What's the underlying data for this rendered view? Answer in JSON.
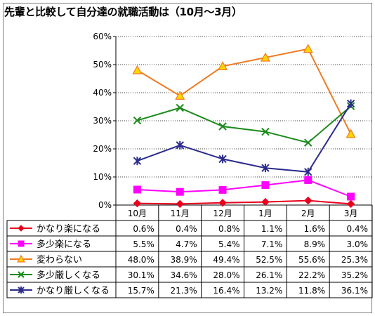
{
  "chart_data": {
    "type": "line",
    "title": "先輩と比較して自分達の就職活動は（10月～3月）",
    "categories": [
      "10月",
      "11月",
      "12月",
      "1月",
      "2月",
      "3月"
    ],
    "ylim": [
      0,
      60
    ],
    "yticks": [
      "0%",
      "10%",
      "20%",
      "30%",
      "40%",
      "50%",
      "60%"
    ],
    "grid": true,
    "series": [
      {
        "name": "かなり楽になる",
        "color": "#e8001c",
        "marker": "diamond",
        "values": [
          0.6,
          0.4,
          0.8,
          1.1,
          1.6,
          0.4
        ],
        "labels": [
          "0.6%",
          "0.4%",
          "0.8%",
          "1.1%",
          "1.6%",
          "0.4%"
        ]
      },
      {
        "name": "多少楽になる",
        "color": "#ff00ff",
        "marker": "square",
        "values": [
          5.5,
          4.7,
          5.4,
          7.1,
          8.9,
          3.0
        ],
        "labels": [
          "5.5%",
          "4.7%",
          "5.4%",
          "7.1%",
          "8.9%",
          "3.0%"
        ]
      },
      {
        "name": "変わらない",
        "color": "#f07b23",
        "marker": "triangle",
        "values": [
          48.0,
          38.9,
          49.4,
          52.5,
          55.6,
          25.3
        ],
        "labels": [
          "48.0%",
          "38.9%",
          "49.4%",
          "52.5%",
          "55.6%",
          "25.3%"
        ]
      },
      {
        "name": "多少厳しくなる",
        "color": "#1a8a1a",
        "marker": "x",
        "values": [
          30.1,
          34.6,
          28.0,
          26.1,
          22.2,
          35.2
        ],
        "labels": [
          "30.1%",
          "34.6%",
          "28.0%",
          "26.1%",
          "22.2%",
          "35.2%"
        ]
      },
      {
        "name": "かなり厳しくなる",
        "color": "#2b2b8c",
        "marker": "star",
        "values": [
          15.7,
          21.3,
          16.4,
          13.2,
          11.8,
          36.1
        ],
        "labels": [
          "15.7%",
          "21.3%",
          "16.4%",
          "13.2%",
          "11.8%",
          "36.1%"
        ]
      }
    ]
  }
}
